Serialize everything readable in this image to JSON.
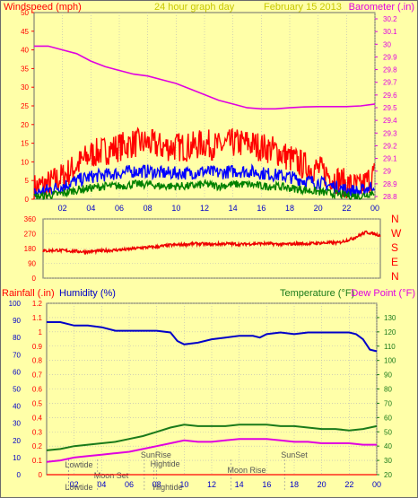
{
  "header": {
    "left_label": "Windspeed (mph)",
    "center_label": "24 hour graph day",
    "date_label": "February 15 2013",
    "right_label": "Barometer (.in)"
  },
  "mid_panel": {
    "right_letters": [
      "N",
      "W",
      "S",
      "E",
      "N"
    ]
  },
  "lower_header": {
    "rainfall_label": "Rainfall (.in)",
    "humidity_label": "Humidity (%)",
    "temperature_label": "Temperature (°F)",
    "dewpoint_label": "Dew Point (°F)"
  },
  "events": [
    {
      "label": "Lowtide",
      "time": 1.6
    },
    {
      "label": "Moon Set",
      "time": 3.7
    },
    {
      "label": "SunRise",
      "time": 7.1
    },
    {
      "label": "Hightide",
      "time": 7.8
    },
    {
      "label": "Moon Rise",
      "time": 13.4
    },
    {
      "label": "SunSet",
      "time": 17.3
    },
    {
      "label": "Lowtide",
      "time": 1.6
    },
    {
      "label": "Hightide",
      "time": 8.0
    }
  ],
  "colors": {
    "background": "#ffffa8",
    "frame": "#6b6b6b",
    "wind_gust": "#ff0000",
    "wind_avg": "#0000ff",
    "wind_low": "#008000",
    "barometer": "#e000e0",
    "direction": "#ee0000",
    "humidity": "#0000c8",
    "temperature": "#1a7a1a",
    "dewpoint": "#e000e0",
    "rainfall": "#ff0000"
  },
  "chart_data": [
    {
      "type": "line",
      "name": "wind-barometer",
      "title": "24 hour graph day February 15 2013",
      "xlabel": "",
      "ylabel": "Windspeed (mph)",
      "y2label": "Barometer (.in)",
      "x_ticks": [
        "02",
        "04",
        "06",
        "08",
        "10",
        "12",
        "14",
        "16",
        "18",
        "20",
        "22",
        "00"
      ],
      "x_tick_values": [
        2,
        4,
        6,
        8,
        10,
        12,
        14,
        16,
        18,
        20,
        22,
        24
      ],
      "xlim": [
        0,
        24
      ],
      "ylim": [
        0,
        50
      ],
      "y_ticks": [
        0,
        5,
        10,
        15,
        20,
        25,
        30,
        35,
        40,
        45,
        50
      ],
      "y2lim": [
        29.75,
        30.25
      ],
      "y2_ticks": [
        "28.8",
        "28.9",
        "29",
        "29.1",
        "29.2",
        "29.3",
        "29.4",
        "29.5",
        "29.6",
        "29.7",
        "29.8",
        "29.9",
        "30",
        "30.1",
        "30.2"
      ],
      "series": [
        {
          "name": "Gust",
          "x": [
            0,
            1,
            2,
            3,
            4,
            5,
            6,
            7,
            8,
            9,
            10,
            11,
            12,
            13,
            14,
            15,
            16,
            17,
            18,
            19,
            20,
            21,
            22,
            23,
            24
          ],
          "values": [
            3,
            4,
            6,
            9,
            12,
            13,
            14,
            15,
            15,
            14,
            14,
            14,
            15,
            14,
            15,
            15,
            14,
            13,
            11,
            9,
            8,
            6,
            4,
            3,
            7
          ]
        },
        {
          "name": "Average",
          "x": [
            0,
            1,
            2,
            3,
            4,
            5,
            6,
            7,
            8,
            9,
            10,
            11,
            12,
            13,
            14,
            15,
            16,
            17,
            18,
            19,
            20,
            21,
            22,
            23,
            24
          ],
          "values": [
            1.5,
            2.5,
            3.5,
            5,
            6,
            6.5,
            7,
            7.5,
            7.5,
            7,
            7,
            7,
            7.5,
            7,
            7.5,
            7.5,
            7,
            6.5,
            6,
            5,
            4.5,
            3.5,
            2.5,
            2,
            4
          ]
        },
        {
          "name": "Low",
          "x": [
            0,
            1,
            2,
            3,
            4,
            5,
            6,
            7,
            8,
            9,
            10,
            11,
            12,
            13,
            14,
            15,
            16,
            17,
            18,
            19,
            20,
            21,
            22,
            23,
            24
          ],
          "values": [
            0.5,
            1,
            1.5,
            2.5,
            3,
            3.5,
            3.5,
            4,
            4,
            3.5,
            3.5,
            3.5,
            4,
            3.5,
            4,
            4,
            3.5,
            3.5,
            3,
            2.5,
            2,
            1.5,
            1,
            0.8,
            2
          ]
        },
        {
          "name": "Barometer",
          "x": [
            0,
            1,
            2,
            3,
            4,
            5,
            6,
            7,
            8,
            9,
            10,
            11,
            12,
            13,
            14,
            15,
            16,
            17,
            18,
            19,
            20,
            21,
            22,
            23,
            24
          ],
          "values": [
            30.16,
            30.16,
            30.15,
            30.14,
            30.12,
            30.105,
            30.095,
            30.085,
            30.08,
            30.07,
            30.06,
            30.045,
            30.03,
            30.015,
            30.005,
            29.995,
            29.992,
            29.992,
            29.995,
            29.997,
            29.998,
            29.998,
            29.998,
            30.0,
            30.005
          ]
        }
      ]
    },
    {
      "type": "line",
      "name": "wind-direction",
      "xlim": [
        0,
        24
      ],
      "ylim": [
        0,
        360
      ],
      "y_ticks": [
        0,
        90,
        180,
        270,
        360
      ],
      "series": [
        {
          "name": "Direction",
          "x": [
            0,
            1,
            2,
            3,
            4,
            5,
            6,
            7,
            8,
            9,
            10,
            11,
            12,
            13,
            14,
            15,
            16,
            17,
            18,
            19,
            20,
            21,
            22,
            23,
            24
          ],
          "values": [
            165,
            170,
            165,
            160,
            165,
            170,
            175,
            185,
            190,
            200,
            205,
            210,
            205,
            210,
            205,
            210,
            210,
            205,
            210,
            210,
            215,
            215,
            240,
            280,
            260
          ]
        }
      ]
    },
    {
      "type": "line",
      "name": "temp-humidity-rain",
      "xlim": [
        0,
        24
      ],
      "x_ticks": [
        "02",
        "04",
        "06",
        "08",
        "10",
        "12",
        "14",
        "16",
        "18",
        "20",
        "22",
        "00"
      ],
      "x_tick_values": [
        2,
        4,
        6,
        8,
        10,
        12,
        14,
        16,
        18,
        20,
        22,
        24
      ],
      "rain_ylim": [
        0,
        1.2
      ],
      "rain_ticks": [
        "0",
        "0.1",
        "0.2",
        "0.3",
        "0.4",
        "0.5",
        "0.6",
        "0.7",
        "0.8",
        "0.9",
        "1",
        "1.1",
        "1.2"
      ],
      "humidity_ylim": [
        0,
        100
      ],
      "humidity_ticks": [
        0,
        10,
        20,
        30,
        40,
        50,
        60,
        70,
        80,
        90,
        100
      ],
      "temp_ylim": [
        20,
        140
      ],
      "temp_ticks": [
        20,
        30,
        40,
        50,
        60,
        70,
        80,
        90,
        100,
        110,
        120,
        130
      ],
      "series": [
        {
          "name": "Humidity",
          "x": [
            0,
            1,
            2,
            3,
            4,
            5,
            6,
            7,
            8,
            9,
            9.5,
            10,
            11,
            12,
            13,
            14,
            15,
            15.5,
            16,
            17,
            18,
            19,
            20,
            21,
            22,
            22.5,
            23,
            23.5,
            24
          ],
          "values": [
            89,
            89,
            87,
            87,
            86,
            84,
            84,
            84,
            84,
            83,
            78,
            76,
            77,
            79,
            80,
            81,
            81,
            80,
            82,
            83,
            82,
            83,
            83,
            83,
            83,
            82,
            79,
            73,
            72
          ]
        },
        {
          "name": "Temperature",
          "x": [
            0,
            1,
            2,
            3,
            4,
            5,
            6,
            7,
            8,
            9,
            10,
            11,
            12,
            13,
            14,
            15,
            16,
            17,
            18,
            19,
            20,
            21,
            22,
            23,
            24
          ],
          "values": [
            37,
            38,
            40,
            41,
            42,
            43,
            45,
            47,
            50,
            53,
            55,
            54,
            54,
            54,
            55,
            55,
            55,
            54,
            54,
            53,
            52,
            52,
            51,
            52,
            54
          ]
        },
        {
          "name": "Dew Point",
          "x": [
            0,
            1,
            2,
            3,
            4,
            5,
            6,
            7,
            8,
            9,
            10,
            11,
            12,
            13,
            14,
            15,
            16,
            17,
            18,
            19,
            20,
            21,
            22,
            23,
            24
          ],
          "values": [
            29,
            30,
            32,
            33,
            34,
            35,
            36,
            38,
            40,
            42,
            44,
            43,
            43,
            44,
            45,
            45,
            45,
            44,
            43,
            43,
            42,
            42,
            42,
            41,
            41
          ]
        },
        {
          "name": "Rainfall",
          "x": [
            0,
            24
          ],
          "values": [
            0,
            0
          ]
        }
      ]
    }
  ]
}
